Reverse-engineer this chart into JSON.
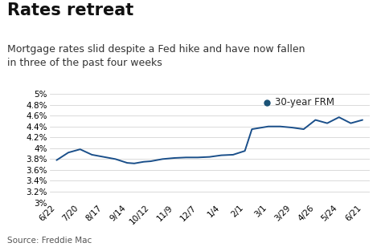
{
  "title": "Rates retreat",
  "subtitle": "Mortgage rates slid despite a Fed hike and have now fallen\nin three of the past four weeks",
  "source": "Source: Freddie Mac",
  "legend_label": "30-year FRM",
  "legend_color": "#1a5276",
  "line_color": "#1a4f8a",
  "background_color": "#ffffff",
  "x_labels": [
    "6/22",
    "7/20",
    "8/17",
    "9/14",
    "10/12",
    "11/9",
    "12/7",
    "1/4",
    "2/1",
    "3/1",
    "3/29",
    "4/26",
    "5/24",
    "6/21"
  ],
  "x_data": [
    0,
    0.5,
    1,
    1.5,
    2,
    2.5,
    3,
    3.3,
    3.7,
    4,
    4.5,
    5,
    5.5,
    6,
    6.5,
    7,
    7.5,
    8,
    8.3,
    9,
    9.5,
    10,
    10.5,
    11,
    11.5,
    12,
    12.5,
    13
  ],
  "y_data": [
    3.78,
    3.92,
    3.98,
    3.88,
    3.84,
    3.8,
    3.73,
    3.72,
    3.75,
    3.76,
    3.8,
    3.82,
    3.83,
    3.83,
    3.84,
    3.87,
    3.88,
    3.95,
    4.35,
    4.4,
    4.4,
    4.38,
    4.35,
    4.52,
    4.46,
    4.57,
    4.46,
    4.52
  ],
  "ylim": [
    3.0,
    5.0
  ],
  "yticks": [
    3.0,
    3.2,
    3.4,
    3.6,
    3.8,
    4.0,
    4.2,
    4.4,
    4.6,
    4.8,
    5.0
  ],
  "title_fontsize": 15,
  "subtitle_fontsize": 9,
  "source_fontsize": 7.5,
  "axis_fontsize": 7.5,
  "legend_fontsize": 8.5
}
